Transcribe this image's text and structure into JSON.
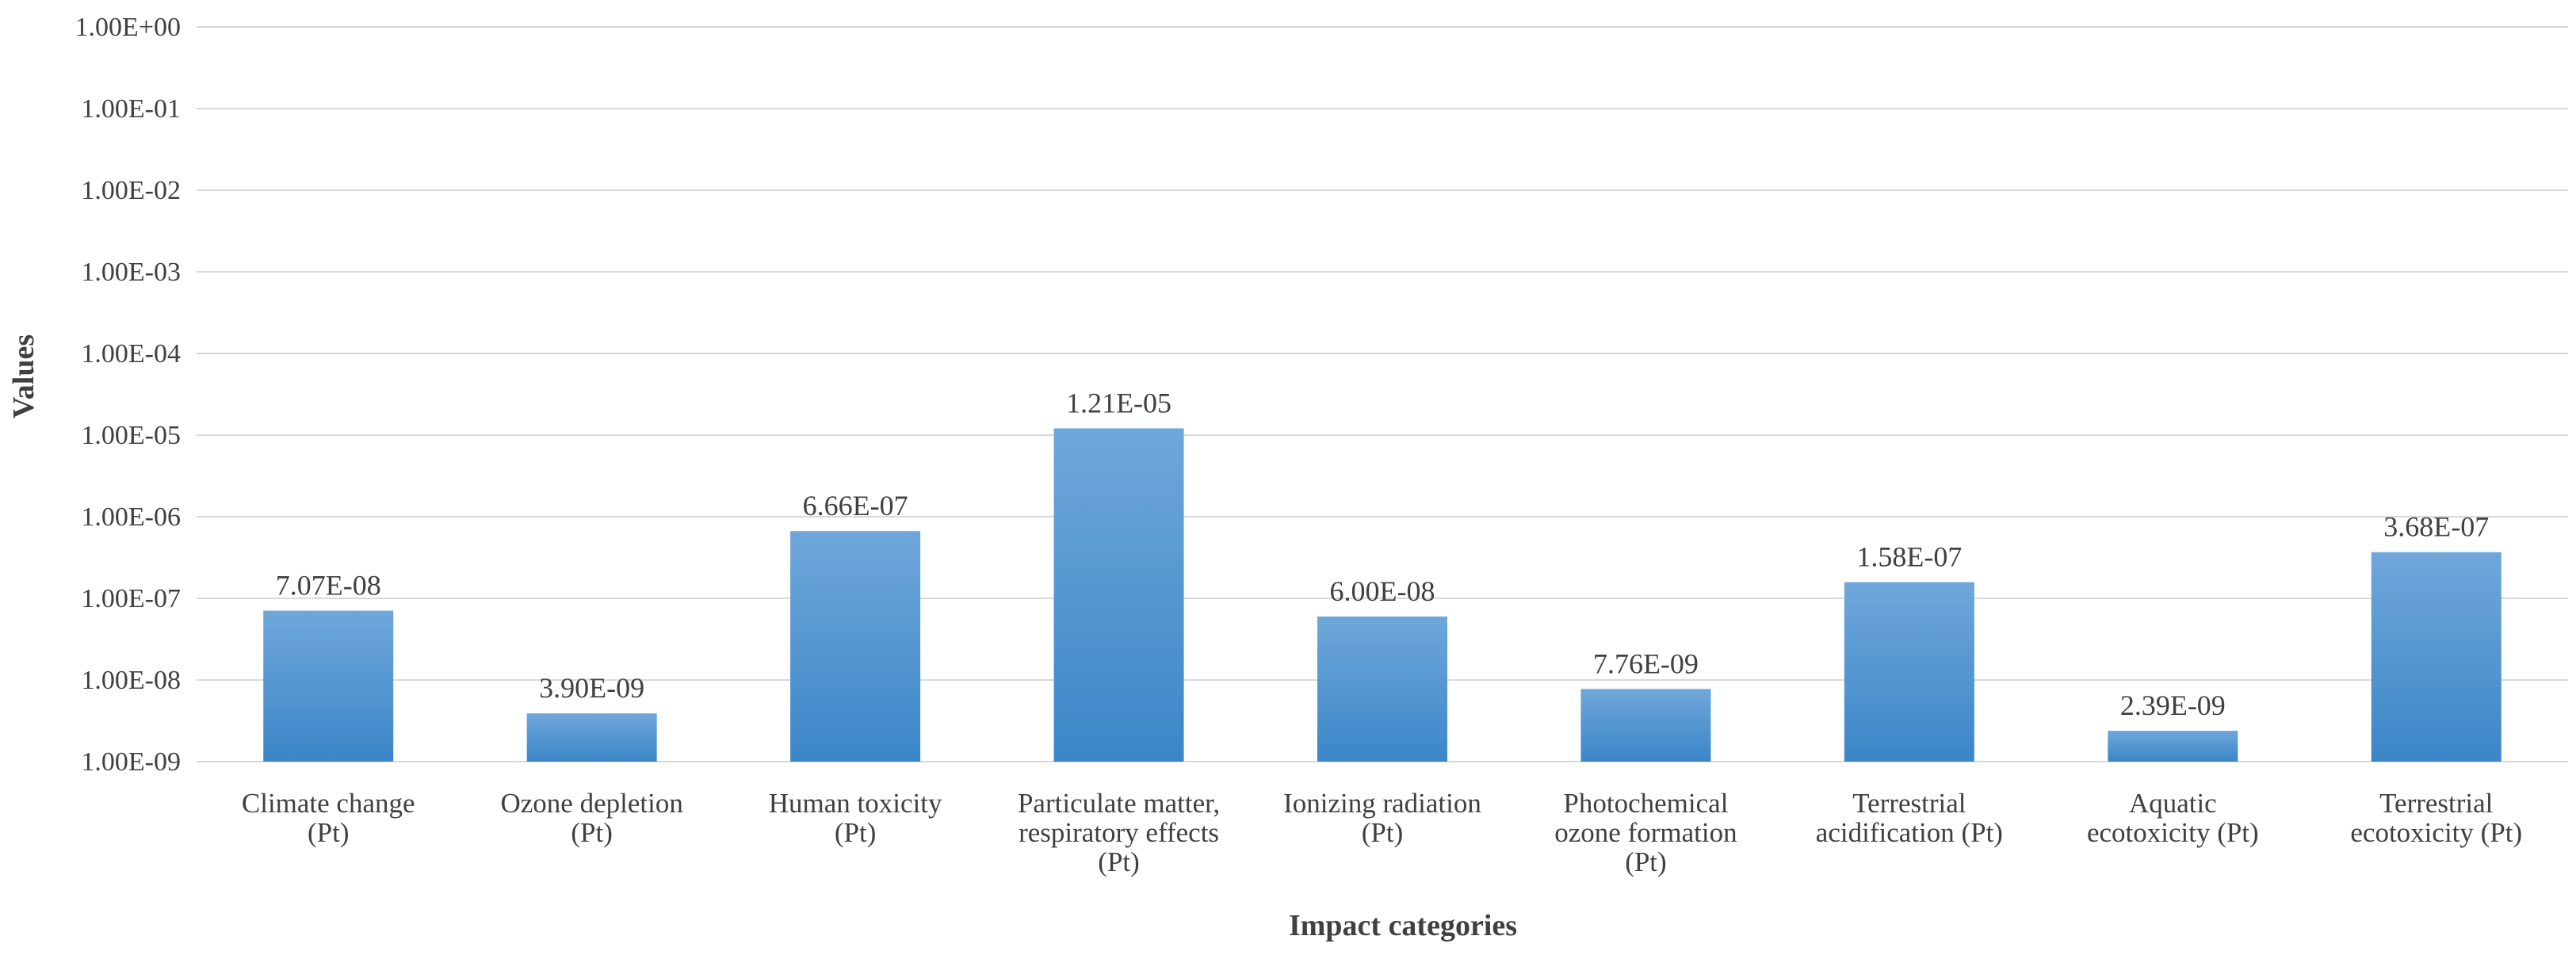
{
  "colors": {
    "bar_top": "#6fa7da",
    "bar_bottom": "#3b86c8",
    "grid": "#d9d9d9",
    "text": "#404040",
    "background": "#ffffff"
  },
  "chart_data": {
    "type": "bar",
    "title": "",
    "xlabel": "Impact categories",
    "ylabel": "Values",
    "yscale": "log",
    "ylim": [
      1e-09,
      1
    ],
    "grid": true,
    "yticks": [
      {
        "value": 1,
        "label": "1.00E+00"
      },
      {
        "value": 0.1,
        "label": "1.00E-01"
      },
      {
        "value": 0.01,
        "label": "1.00E-02"
      },
      {
        "value": 0.001,
        "label": "1.00E-03"
      },
      {
        "value": 0.0001,
        "label": "1.00E-04"
      },
      {
        "value": 1e-05,
        "label": "1.00E-05"
      },
      {
        "value": 1e-06,
        "label": "1.00E-06"
      },
      {
        "value": 1e-07,
        "label": "1.00E-07"
      },
      {
        "value": 1e-08,
        "label": "1.00E-08"
      },
      {
        "value": 1e-09,
        "label": "1.00E-09"
      }
    ],
    "categories": [
      "Climate change (Pt)",
      "Ozone depletion (Pt)",
      "Human toxicity (Pt)",
      "Particulate matter, respiratory effects (Pt)",
      "Ionizing radiation (Pt)",
      "Photochemical ozone formation (Pt)",
      "Terrestrial acidification (Pt)",
      "Aquatic ecotoxicity (Pt)",
      "Terrestrial ecotoxicity (Pt)"
    ],
    "category_lines": [
      [
        "Climate change",
        "(Pt)"
      ],
      [
        "Ozone depletion",
        "(Pt)"
      ],
      [
        "Human toxicity",
        "(Pt)"
      ],
      [
        "Particulate matter,",
        "respiratory effects",
        "(Pt)"
      ],
      [
        "Ionizing radiation",
        "(Pt)"
      ],
      [
        "Photochemical",
        "ozone formation",
        "(Pt)"
      ],
      [
        "Terrestrial",
        "acidification (Pt)"
      ],
      [
        "Aquatic",
        "ecotoxicity (Pt)"
      ],
      [
        "Terrestrial",
        "ecotoxicity (Pt)"
      ]
    ],
    "values": [
      7.07e-08,
      3.9e-09,
      6.66e-07,
      1.21e-05,
      6e-08,
      7.76e-09,
      1.58e-07,
      2.39e-09,
      3.68e-07
    ],
    "data_labels": [
      "7.07E-08",
      "3.90E-09",
      "6.66E-07",
      "1.21E-05",
      "6.00E-08",
      "7.76E-09",
      "1.58E-07",
      "2.39E-09",
      "3.68E-07"
    ]
  }
}
